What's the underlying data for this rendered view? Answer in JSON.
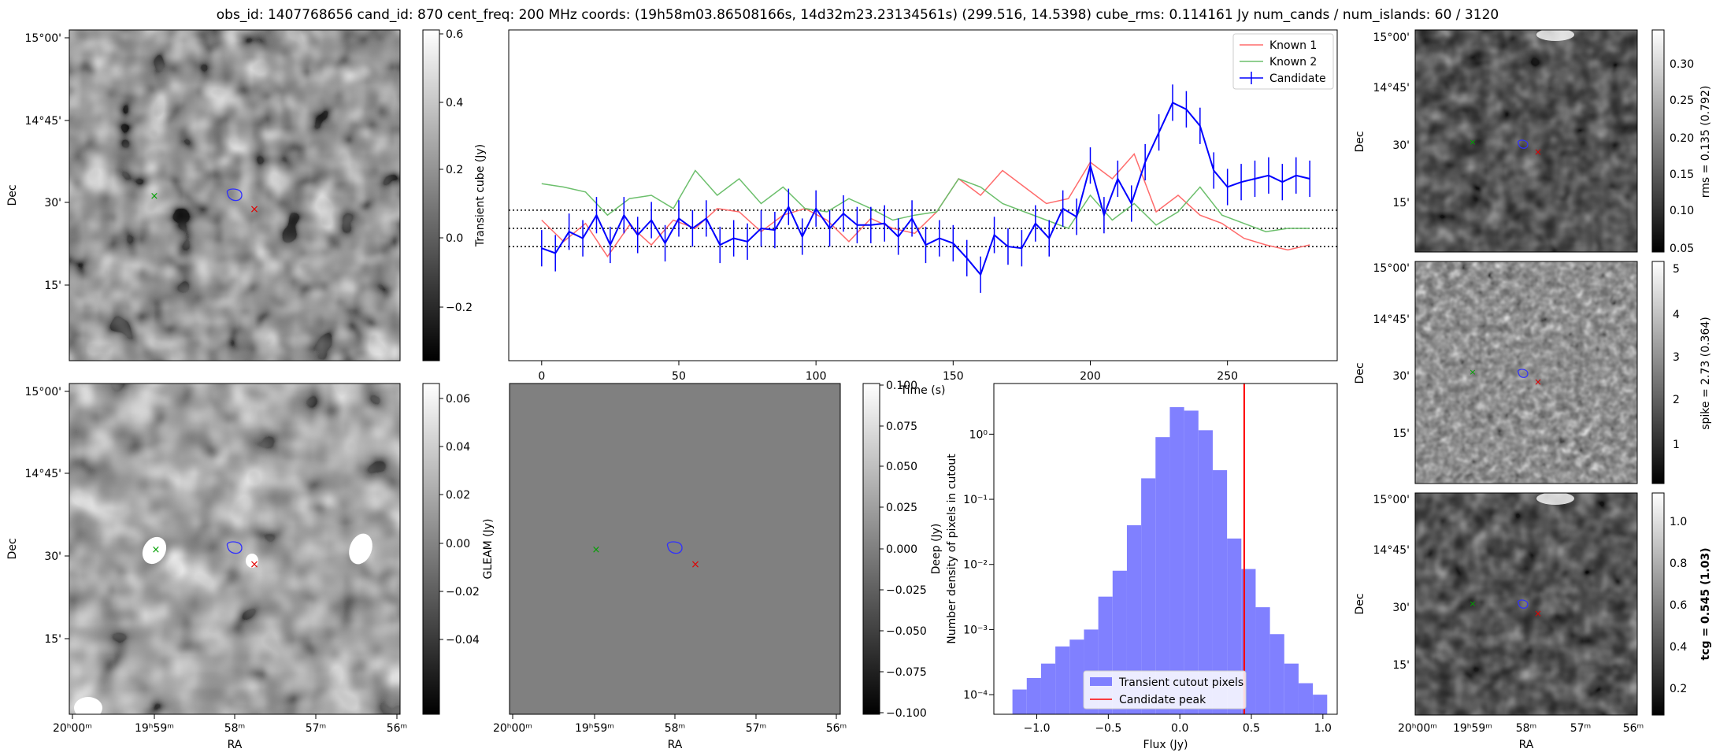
{
  "suptitle": "obs_id: 1407768656 cand_id: 870 cent_freq: 200 MHz coords: (19h58m03.86508166s, 14d32m23.23134561s) (299.516, 14.5398) cube_rms: 0.114161 Jy num_cands / num_islands: 60 / 3120",
  "colors": {
    "known1": "#ff6b6b",
    "known2": "#6cbf6c",
    "candidate": "#0000ff",
    "hist": "#8080ff",
    "peak": "#ff0000"
  },
  "image_axes": {
    "dec_ticks": [
      "15°00'",
      "14°45'",
      "30'",
      "15'"
    ],
    "dec_label": "Dec",
    "ra_ticks": [
      "20ʰ00ᵐ",
      "19ʰ59ᵐ",
      "58ᵐ",
      "57ᵐ",
      "56ᵐ"
    ],
    "ra_label": "RA"
  },
  "panels": {
    "transient": {
      "cbar_label": "Transient cube (Jy)",
      "cbar_ticks": [
        "0.6",
        "0.4",
        "0.2",
        "0.0",
        "−0.2"
      ]
    },
    "deep": {
      "cbar_label": "Deep (Jy)",
      "cbar_ticks": [
        "0.06",
        "0.04",
        "0.02",
        "0.00",
        "−0.02",
        "−0.04"
      ]
    },
    "gleam": {
      "cbar_label": "GLEAM (Jy)",
      "cbar_ticks": [
        "0.100",
        "0.075",
        "0.050",
        "0.025",
        "0.000",
        "−0.025",
        "−0.050",
        "−0.075",
        "−0.100"
      ]
    },
    "rms": {
      "cbar_label": "rms = 0.135 (0.792)",
      "cbar_ticks": [
        "0.30",
        "0.25",
        "0.20",
        "0.15",
        "0.10",
        "0.05"
      ]
    },
    "spike": {
      "cbar_label": "spike = 2.73 (0.364)",
      "cbar_ticks": [
        "5",
        "4",
        "3",
        "2",
        "1"
      ]
    },
    "tcg": {
      "cbar_label": "tcg = 0.545 (1.03)",
      "cbar_ticks": [
        "1.0",
        "0.8",
        "0.6",
        "0.4",
        "0.2"
      ]
    }
  },
  "chart_data": [
    {
      "type": "line",
      "xlabel": "Time (s)",
      "xlim": [
        -12,
        290
      ],
      "ylim": [
        -0.8,
        1.2
      ],
      "xticks": [
        0,
        50,
        100,
        150,
        200,
        250
      ],
      "hlines": [
        0.11,
        0.0,
        -0.11
      ],
      "legend_position": "top-right",
      "series": [
        {
          "name": "Known 1",
          "x": [
            0,
            8,
            16,
            24,
            32,
            40,
            48,
            56,
            64,
            72,
            80,
            88,
            96,
            104,
            112,
            120,
            128,
            136,
            144,
            152,
            160,
            168,
            176,
            184,
            192,
            200,
            208,
            216,
            224,
            232,
            240,
            248,
            256,
            264,
            272,
            280
          ],
          "values": [
            0.05,
            -0.08,
            0.03,
            -0.17,
            0.02,
            -0.1,
            0.05,
            0.0,
            0.12,
            0.1,
            -0.02,
            0.08,
            0.12,
            0.05,
            -0.08,
            0.06,
            0.0,
            -0.03,
            0.1,
            0.3,
            0.2,
            0.35,
            0.25,
            0.15,
            0.18,
            0.4,
            0.3,
            0.45,
            0.1,
            0.2,
            0.08,
            0.03,
            -0.06,
            -0.1,
            -0.13,
            -0.1
          ]
        },
        {
          "name": "Known 2",
          "x": [
            0,
            8,
            16,
            24,
            32,
            40,
            48,
            56,
            64,
            72,
            80,
            88,
            96,
            104,
            112,
            120,
            128,
            136,
            144,
            152,
            160,
            168,
            176,
            184,
            192,
            200,
            208,
            216,
            224,
            232,
            240,
            248,
            256,
            264,
            272,
            280
          ],
          "values": [
            0.27,
            0.25,
            0.22,
            0.08,
            0.18,
            0.2,
            0.12,
            0.35,
            0.2,
            0.3,
            0.15,
            0.25,
            0.12,
            0.1,
            0.18,
            0.12,
            0.05,
            0.08,
            0.1,
            0.3,
            0.25,
            0.15,
            0.1,
            0.05,
            0.0,
            0.2,
            0.05,
            0.15,
            0.02,
            0.1,
            0.25,
            0.08,
            0.03,
            -0.02,
            0.0,
            0.0
          ]
        },
        {
          "name": "Candidate",
          "x": [
            0,
            5,
            10,
            15,
            20,
            25,
            30,
            35,
            40,
            45,
            50,
            55,
            60,
            65,
            70,
            75,
            80,
            85,
            90,
            95,
            100,
            105,
            110,
            115,
            120,
            125,
            130,
            135,
            140,
            145,
            150,
            155,
            160,
            165,
            170,
            175,
            180,
            185,
            190,
            195,
            200,
            205,
            210,
            215,
            220,
            225,
            230,
            235,
            240,
            245,
            250,
            255,
            260,
            265,
            270,
            275,
            280
          ],
          "values": [
            -0.12,
            -0.15,
            -0.02,
            -0.06,
            0.08,
            -0.1,
            0.08,
            -0.04,
            0.05,
            -0.09,
            0.06,
            0.0,
            0.06,
            -0.1,
            -0.06,
            -0.08,
            0.0,
            -0.01,
            0.13,
            -0.05,
            0.12,
            0.0,
            0.09,
            0.02,
            0.02,
            0.03,
            -0.05,
            0.06,
            -0.1,
            -0.06,
            -0.09,
            -0.18,
            -0.28,
            -0.04,
            -0.11,
            -0.12,
            0.03,
            -0.06,
            0.12,
            0.07,
            0.38,
            0.08,
            0.3,
            0.15,
            0.4,
            0.58,
            0.76,
            0.72,
            0.62,
            0.35,
            0.25,
            0.28,
            0.3,
            0.32,
            0.28,
            0.32,
            0.3
          ],
          "error": 0.11
        }
      ]
    },
    {
      "type": "bar",
      "title": "",
      "xlabel": "Flux (Jy)",
      "ylabel": "Number density of pixels in cutout",
      "yscale": "log",
      "xlim": [
        -1.3,
        1.1
      ],
      "ylim": [
        5e-05,
        6
      ],
      "xticks": [
        -1.0,
        -0.5,
        0.0,
        0.5,
        1.0
      ],
      "xticklabels": [
        "−1.0",
        "−0.5",
        "0.0",
        "0.5",
        "1.0"
      ],
      "yticklabels": [
        "10⁻⁴",
        "10⁻³",
        "10⁻²",
        "10⁻¹",
        "10⁰"
      ],
      "bin_edges": [
        -1.17,
        -1.07,
        -0.97,
        -0.87,
        -0.77,
        -0.67,
        -0.57,
        -0.47,
        -0.37,
        -0.27,
        -0.17,
        -0.07,
        0.03,
        0.13,
        0.23,
        0.33,
        0.43,
        0.53,
        0.63,
        0.73,
        0.83,
        0.93,
        1.03
      ],
      "values": [
        0.00012,
        0.00018,
        0.0003,
        0.00055,
        0.0007,
        0.001,
        0.0032,
        0.008,
        0.04,
        0.21,
        0.9,
        2.6,
        2.3,
        1.15,
        0.28,
        0.025,
        0.0085,
        0.0022,
        0.00085,
        0.0003,
        0.00015,
        0.0001
      ],
      "vline": 0.45,
      "legend": [
        "Transient cutout pixels",
        "Candidate peak"
      ],
      "legend_position": "bottom-center"
    }
  ]
}
